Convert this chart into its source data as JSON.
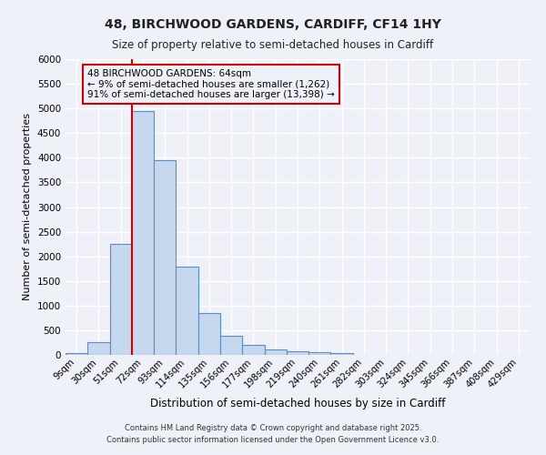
{
  "title1": "48, BIRCHWOOD GARDENS, CARDIFF, CF14 1HY",
  "title2": "Size of property relative to semi-detached houses in Cardiff",
  "xlabel": "Distribution of semi-detached houses by size in Cardiff",
  "ylabel": "Number of semi-detached properties",
  "categories": [
    "9sqm",
    "30sqm",
    "51sqm",
    "72sqm",
    "93sqm",
    "114sqm",
    "135sqm",
    "156sqm",
    "177sqm",
    "198sqm",
    "219sqm",
    "240sqm",
    "261sqm",
    "282sqm",
    "303sqm",
    "324sqm",
    "345sqm",
    "366sqm",
    "387sqm",
    "408sqm",
    "429sqm"
  ],
  "values": [
    45,
    255,
    2250,
    4950,
    3950,
    1800,
    850,
    390,
    200,
    110,
    80,
    60,
    40,
    0,
    0,
    0,
    0,
    0,
    0,
    0,
    0
  ],
  "bar_color": "#c5d8ed",
  "bar_edge_color": "#5b8cc8",
  "background_color": "#eef2f8",
  "grid_color": "#ffffff",
  "ylim": [
    0,
    6000
  ],
  "yticks": [
    0,
    500,
    1000,
    1500,
    2000,
    2500,
    3000,
    3500,
    4000,
    4500,
    5000,
    5500,
    6000
  ],
  "property_label": "48 BIRCHWOOD GARDENS: 64sqm",
  "pct_smaller": 9,
  "pct_larger": 91,
  "n_smaller": 1262,
  "n_larger": 13398,
  "red_line_color": "#cc0000",
  "annotation_box_color": "#cc0000",
  "footer1": "Contains HM Land Registry data © Crown copyright and database right 2025.",
  "footer2": "Contains public sector information licensed under the Open Government Licence v3.0."
}
